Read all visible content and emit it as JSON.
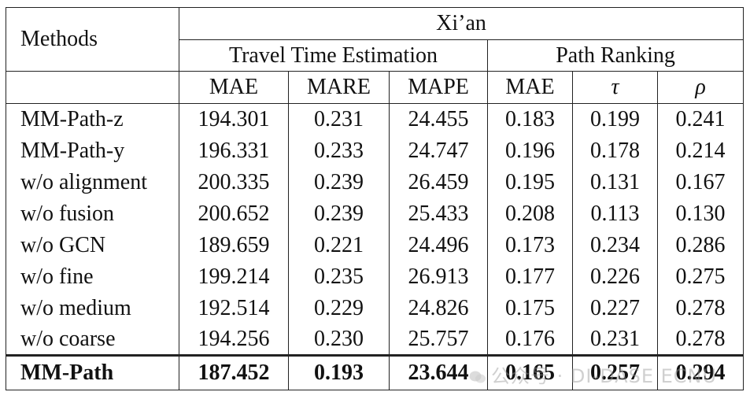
{
  "city": "Xi’an",
  "methods_header": "Methods",
  "groups": {
    "tte": "Travel Time Estimation",
    "pr": "Path Ranking"
  },
  "metrics": [
    "MAE",
    "MARE",
    "MAPE",
    "MAE",
    "τ",
    "ρ"
  ],
  "rows": [
    {
      "method": "MM-Path-z",
      "values": [
        "194.301",
        "0.231",
        "24.455",
        "0.183",
        "0.199",
        "0.241"
      ]
    },
    {
      "method": "MM-Path-y",
      "values": [
        "196.331",
        "0.233",
        "24.747",
        "0.196",
        "0.178",
        "0.214"
      ]
    },
    {
      "method": "w/o alignment",
      "values": [
        "200.335",
        "0.239",
        "26.459",
        "0.195",
        "0.131",
        "0.167"
      ]
    },
    {
      "method": "w/o fusion",
      "values": [
        "200.652",
        "0.239",
        "25.433",
        "0.208",
        "0.113",
        "0.130"
      ]
    },
    {
      "method": "w/o GCN",
      "values": [
        "189.659",
        "0.221",
        "24.496",
        "0.173",
        "0.234",
        "0.286"
      ]
    },
    {
      "method": "w/o fine",
      "values": [
        "199.214",
        "0.235",
        "26.913",
        "0.177",
        "0.226",
        "0.275"
      ]
    },
    {
      "method": "w/o medium",
      "values": [
        "192.514",
        "0.229",
        "24.826",
        "0.175",
        "0.227",
        "0.278"
      ]
    },
    {
      "method": "w/o coarse",
      "values": [
        "194.256",
        "0.230",
        "25.757",
        "0.176",
        "0.231",
        "0.278"
      ]
    },
    {
      "method": "MM-Path",
      "values": [
        "187.452",
        "0.193",
        "23.644",
        "0.165",
        "0.257",
        "0.294"
      ]
    }
  ],
  "watermark": "公众号 · DI-DASE ECNU"
}
